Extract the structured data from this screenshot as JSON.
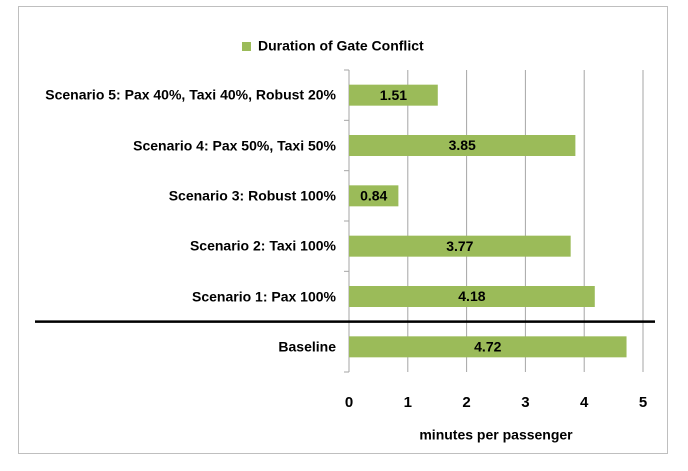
{
  "chart_data": {
    "type": "bar",
    "orientation": "horizontal",
    "legend": "top",
    "categories": [
      "Baseline",
      "Scenario 1: Pax 100%",
      "Scenario 2: Taxi 100%",
      "Scenario 3: Robust 100%",
      "Scenario 4: Pax 50%, Taxi 50%",
      "Scenario 5: Pax 40%, Taxi 40%, Robust 20%"
    ],
    "series": [
      {
        "name": "Duration of Gate Conflict",
        "color": "#9bbb59",
        "values": [
          4.72,
          4.18,
          3.77,
          0.84,
          3.85,
          1.51
        ]
      }
    ],
    "xlim": [
      0,
      5
    ],
    "xticks": [
      0,
      1,
      2,
      3,
      4,
      5
    ],
    "grid": true,
    "xlabel": "minutes per passenger"
  }
}
